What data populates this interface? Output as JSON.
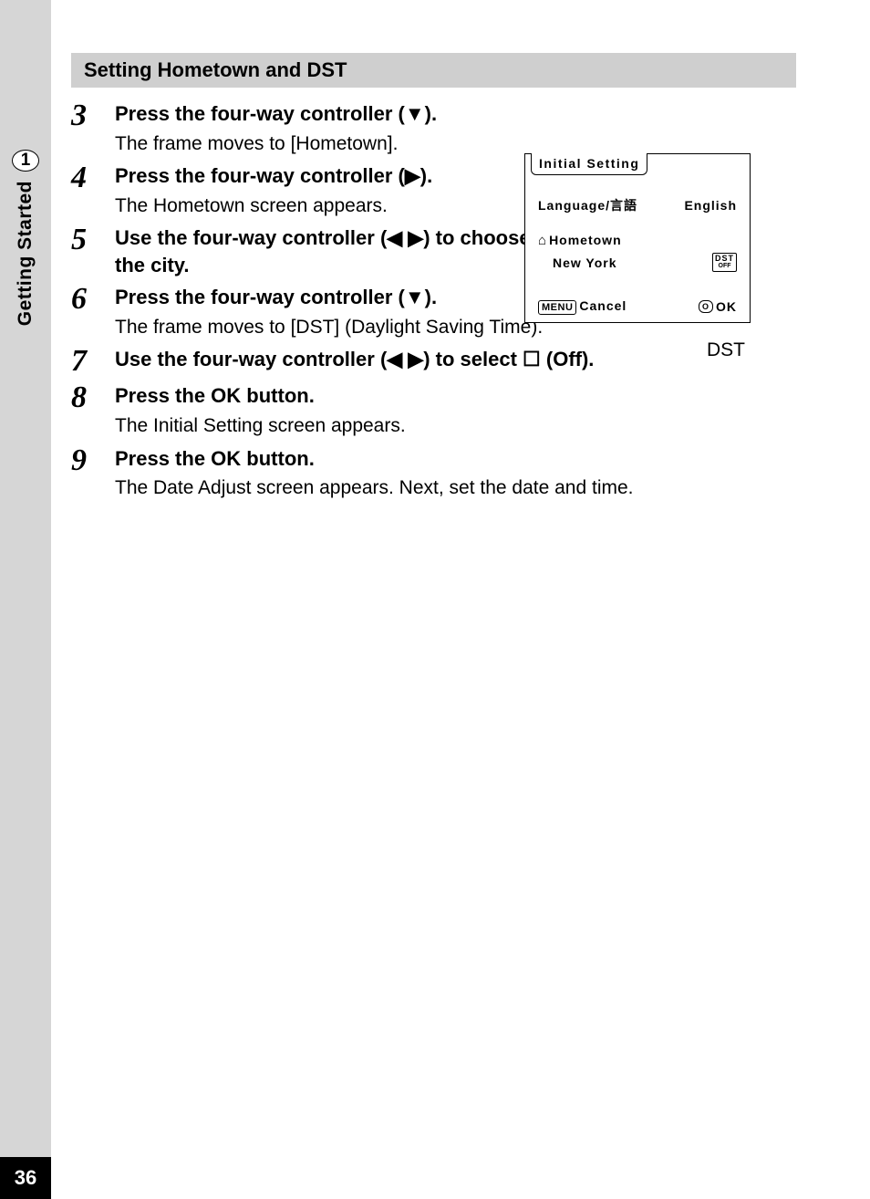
{
  "spine": {
    "chapter_number": "1",
    "chapter_label": "Getting Started"
  },
  "page_number": "36",
  "section_title": "Setting Hometown and DST",
  "glyphs": {
    "down": "▼",
    "right": "▶",
    "left": "◀",
    "checkbox_off": "☐"
  },
  "steps": [
    {
      "num": "3",
      "title_pre": "Press the four-way controller (",
      "title_sym": "▼",
      "title_post": ").",
      "desc": "The frame moves to [Hometown]."
    },
    {
      "num": "4",
      "title_pre": "Press the four-way controller (",
      "title_sym": "▶",
      "title_post": ").",
      "desc": "The Hometown screen appears."
    },
    {
      "num": "5",
      "title_pre": "Use the four-way controller (",
      "title_sym": "◀ ▶",
      "title_post": ") to choose the city.",
      "desc": ""
    },
    {
      "num": "6",
      "title_pre": "Press the four-way controller (",
      "title_sym": "▼",
      "title_post": ").",
      "desc": "The frame moves to [DST] (Daylight Saving Time)."
    },
    {
      "num": "7",
      "title_pre": "Use the four-way controller (",
      "title_sym": "◀ ▶",
      "title_post_pre": ") to select ",
      "title_checkbox": "☐",
      "title_post": " (Off).",
      "desc": ""
    },
    {
      "num": "8",
      "title_pre": "Press the ",
      "title_ok": "OK",
      "title_post": " button.",
      "desc": "The Initial Setting screen appears."
    },
    {
      "num": "9",
      "title_pre": "Press the ",
      "title_ok": "OK",
      "title_post": " button.",
      "desc": "The Date Adjust screen appears. Next, set the date and time."
    }
  ],
  "lcd": {
    "title": "Initial Setting",
    "language_label": "Language/言語",
    "language_value": "English",
    "hometown_label": "Hometown",
    "hometown_value": "New York",
    "dst_badge_top": "DST",
    "dst_badge_bottom": "OFF",
    "menu_label": "MENU",
    "cancel_label": "Cancel",
    "ok_oval": "O",
    "ok_label": "OK",
    "caption": "DST"
  },
  "colors": {
    "spine_bg": "#d6d6d6",
    "section_bar_bg": "#cfcfcf",
    "page_bg": "#ffffff",
    "pagenum_bg": "#000000",
    "pagenum_fg": "#ffffff",
    "text": "#000000"
  }
}
